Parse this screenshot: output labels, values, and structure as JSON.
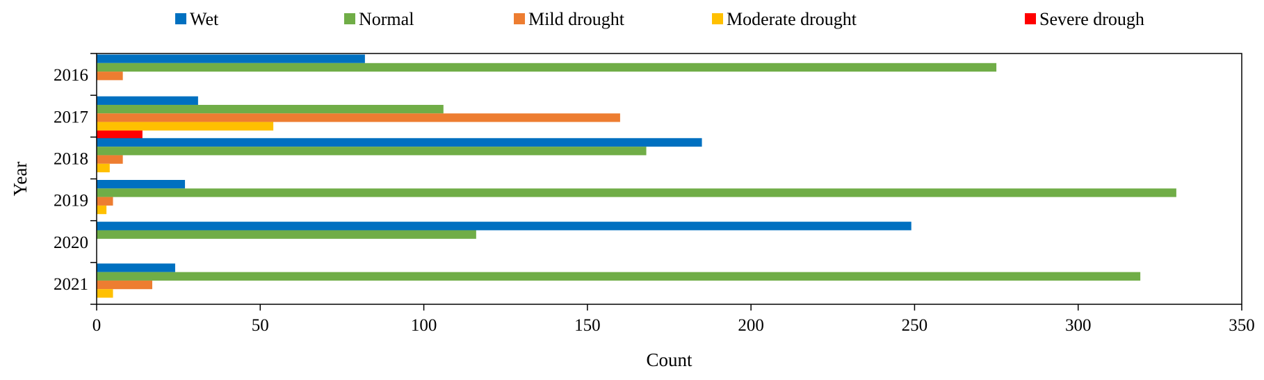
{
  "chart_data": {
    "type": "bar",
    "orientation": "horizontal",
    "title": "",
    "xlabel": "Count",
    "ylabel": "Year",
    "xlim": [
      0,
      350
    ],
    "x_ticks": [
      0,
      50,
      100,
      150,
      200,
      250,
      300,
      350
    ],
    "grid": false,
    "legend_position": "top",
    "categories": [
      "2016",
      "2017",
      "2018",
      "2019",
      "2020",
      "2021"
    ],
    "series": [
      {
        "name": "Wet",
        "color": "#0070C0",
        "values": [
          82,
          31,
          185,
          27,
          249,
          24
        ]
      },
      {
        "name": "Normal",
        "color": "#70AD47",
        "values": [
          275,
          106,
          168,
          330,
          116,
          319
        ]
      },
      {
        "name": "Mild drought",
        "color": "#ED7D31",
        "values": [
          8,
          160,
          8,
          5,
          0,
          17
        ]
      },
      {
        "name": "Moderate drought",
        "color": "#FFC000",
        "values": [
          0,
          54,
          4,
          3,
          0,
          5
        ]
      },
      {
        "name": "Severe drough",
        "color": "#FF0000",
        "values": [
          0,
          14,
          0,
          0,
          0,
          0
        ]
      }
    ]
  }
}
